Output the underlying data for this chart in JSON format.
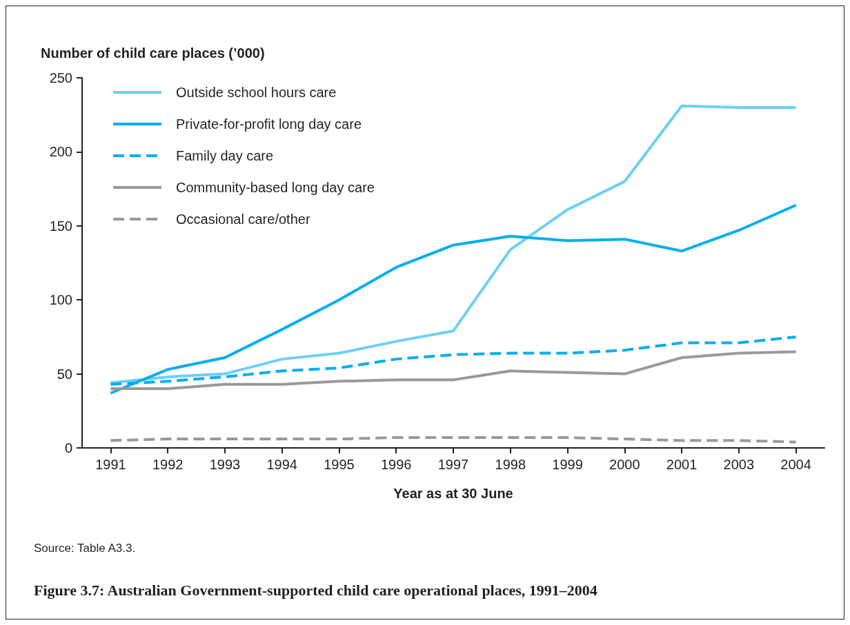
{
  "chart_data": {
    "type": "line",
    "title": "Figure 3.7: Australian Government-supported child care operational places, 1991–2004",
    "ylabel": "Number of child care places (’000)",
    "xlabel": "Year as at 30 June",
    "annotations": [
      "Source: Table A3.3."
    ],
    "categories": [
      "1991",
      "1992",
      "1993",
      "1994",
      "1995",
      "1996",
      "1997",
      "1998",
      "1999",
      "2000",
      "2001",
      "2003",
      "2004"
    ],
    "series": [
      {
        "name": "Outside school hours care",
        "color": "#6dcff6",
        "values": [
          44,
          48,
          50,
          60,
          64,
          72,
          79,
          134,
          161,
          180,
          231,
          230,
          230
        ]
      },
      {
        "name": "Private-for-profit long day care",
        "color": "#00aeef",
        "values": [
          37,
          53,
          61,
          80,
          100,
          122,
          137,
          143,
          140,
          141,
          133,
          147,
          164
        ]
      },
      {
        "name": "Family day care",
        "color": "#00aeef",
        "line_style": "dashed",
        "values": [
          43,
          45,
          48,
          52,
          54,
          60,
          63,
          64,
          64,
          66,
          71,
          71,
          75
        ]
      },
      {
        "name": "Community-based long day care",
        "color": "#999999",
        "values": [
          40,
          40,
          43,
          43,
          45,
          46,
          46,
          52,
          51,
          50,
          61,
          64,
          65
        ]
      },
      {
        "name": "Occasional care/other",
        "color": "#999999",
        "line_style": "dashed",
        "values": [
          5,
          6,
          6,
          6,
          6,
          7,
          7,
          7,
          7,
          6,
          5,
          5,
          4
        ]
      }
    ],
    "ylim": [
      0,
      250
    ],
    "yticks": [
      0,
      50,
      100,
      150,
      200,
      250
    ],
    "grid": false,
    "legend": "top left",
    "marker": "none",
    "line_style": "solid"
  }
}
